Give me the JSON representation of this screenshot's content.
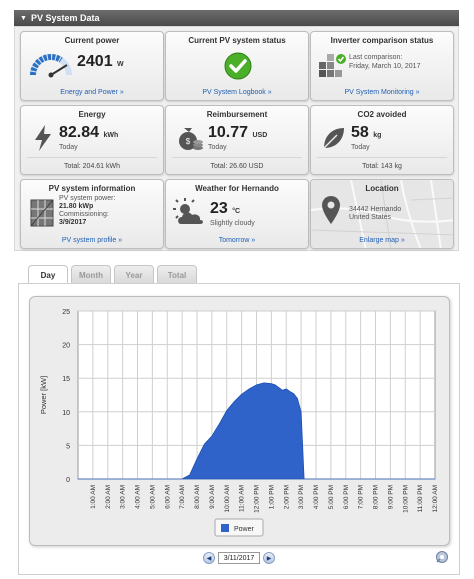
{
  "panel": {
    "title": "PV System Data"
  },
  "tiles": {
    "current_power": {
      "title": "Current power",
      "value": "2401",
      "unit": "W",
      "link": "Energy and Power »"
    },
    "pv_status": {
      "title": "Current PV system status",
      "link": "PV System Logbook »"
    },
    "inverter": {
      "title": "Inverter comparison status",
      "line1": "Last comparison:",
      "line2": "Friday, March 10, 2017",
      "link": "PV System Monitoring »"
    },
    "energy": {
      "title": "Energy",
      "value": "82.84",
      "unit": "kWh",
      "period": "Today",
      "total": "Total: 204.61 kWh"
    },
    "reimbursement": {
      "title": "Reimbursement",
      "value": "10.77",
      "unit": "USD",
      "period": "Today",
      "total": "Total: 26.60 USD"
    },
    "co2": {
      "title": "CO2 avoided",
      "value": "58",
      "unit": "kg",
      "period": "Today",
      "total": "Total: 143 kg"
    },
    "pv_info": {
      "title": "PV system information",
      "line1": "PV system power:",
      "line2": "21.80 kWp",
      "line3": "Commissioning:",
      "line4": "3/9/2017",
      "link": "PV system profile »"
    },
    "weather": {
      "title": "Weather for Hernando",
      "value": "23",
      "unit": "°C",
      "desc": "Slightly cloudy",
      "link": "Tomorrow »"
    },
    "location": {
      "title": "Location",
      "line1": "34442 Hernando",
      "line2": "United States",
      "link": "Enlarge map »"
    }
  },
  "tabs": [
    {
      "label": "Day",
      "active": true
    },
    {
      "label": "Month",
      "active": false
    },
    {
      "label": "Year",
      "active": false
    },
    {
      "label": "Total",
      "active": false
    }
  ],
  "date_nav": {
    "date": "3/11/2017",
    "prev": "◀",
    "next": "▶"
  },
  "colors": {
    "series": "#2f63c9",
    "accent": "#1f5fb4",
    "ok_green": "#4caf2a"
  },
  "chart_data": {
    "type": "area",
    "title": "",
    "xlabel": "",
    "ylabel": "Power [kW]",
    "ylim": [
      0,
      25
    ],
    "yticks": [
      0,
      5,
      10,
      15,
      20,
      25
    ],
    "grid": true,
    "legend": "bottom-center",
    "xticks": [
      "1:00 AM",
      "2:00 AM",
      "3:00 AM",
      "4:00 AM",
      "5:00 AM",
      "6:00 AM",
      "7:00 AM",
      "8:00 AM",
      "9:00 AM",
      "10:00 AM",
      "11:00 AM",
      "12:00 PM",
      "1:00 PM",
      "2:00 PM",
      "3:00 PM",
      "4:00 PM",
      "5:00 PM",
      "6:00 PM",
      "7:00 PM",
      "8:00 PM",
      "9:00 PM",
      "10:00 PM",
      "11:00 PM",
      "12:00 AM"
    ],
    "series": [
      {
        "name": "Power",
        "x_hours": [
          0,
          7.0,
          7.5,
          8.0,
          8.5,
          9.0,
          9.5,
          10.0,
          10.5,
          11.0,
          11.5,
          12.0,
          12.5,
          13.0,
          13.25,
          13.5,
          13.75,
          14.0,
          14.25,
          14.5,
          14.75,
          15.0,
          15.1,
          15.2,
          24
        ],
        "values": [
          0,
          0,
          0.6,
          3.0,
          5.2,
          6.4,
          8.2,
          10.2,
          11.5,
          12.6,
          13.4,
          14.0,
          14.3,
          14.2,
          14.0,
          13.6,
          13.2,
          13.4,
          13.0,
          12.7,
          12.0,
          10.0,
          5.0,
          0,
          0
        ]
      }
    ]
  }
}
